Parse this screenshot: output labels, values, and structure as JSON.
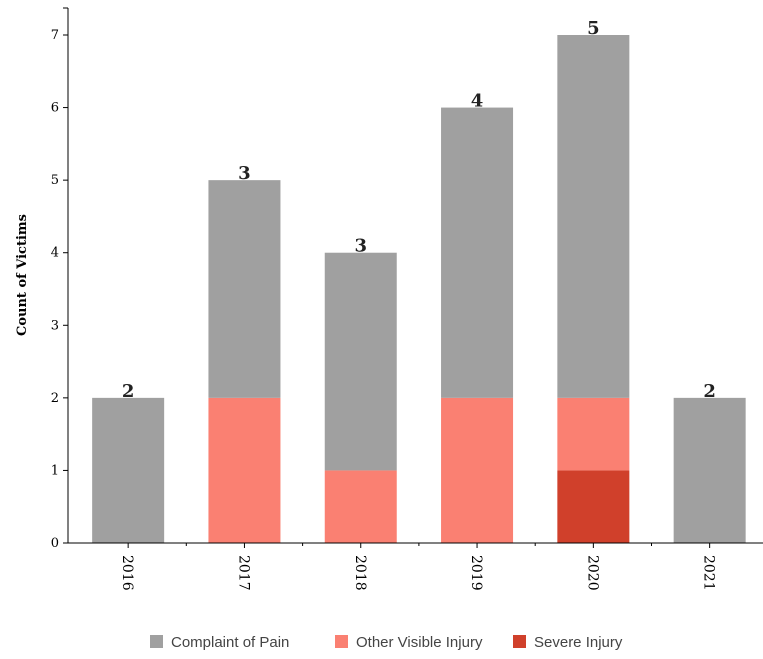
{
  "chart_data": {
    "type": "bar",
    "stacked": true,
    "title": "",
    "xlabel": "",
    "ylabel": "Count of Victims",
    "categories": [
      "2016",
      "2017",
      "2018",
      "2019",
      "2020",
      "2021"
    ],
    "series": [
      {
        "name": "Severe Injury",
        "color": "#d0402b",
        "values": [
          0,
          0,
          0,
          0,
          1,
          0
        ]
      },
      {
        "name": "Other Visible Injury",
        "color": "#fa8072",
        "values": [
          0,
          2,
          1,
          2,
          1,
          0
        ]
      },
      {
        "name": "Complaint of Pain",
        "color": "#a0a0a0",
        "values": [
          2,
          3,
          3,
          4,
          5,
          2
        ]
      }
    ],
    "legend_order": [
      "Complaint of Pain",
      "Other Visible Injury",
      "Severe Injury"
    ],
    "ylim": [
      0,
      7
    ],
    "yticks": [
      0,
      1,
      2,
      3,
      4,
      5,
      6,
      7
    ],
    "grid": false,
    "legend_position": "bottom"
  }
}
